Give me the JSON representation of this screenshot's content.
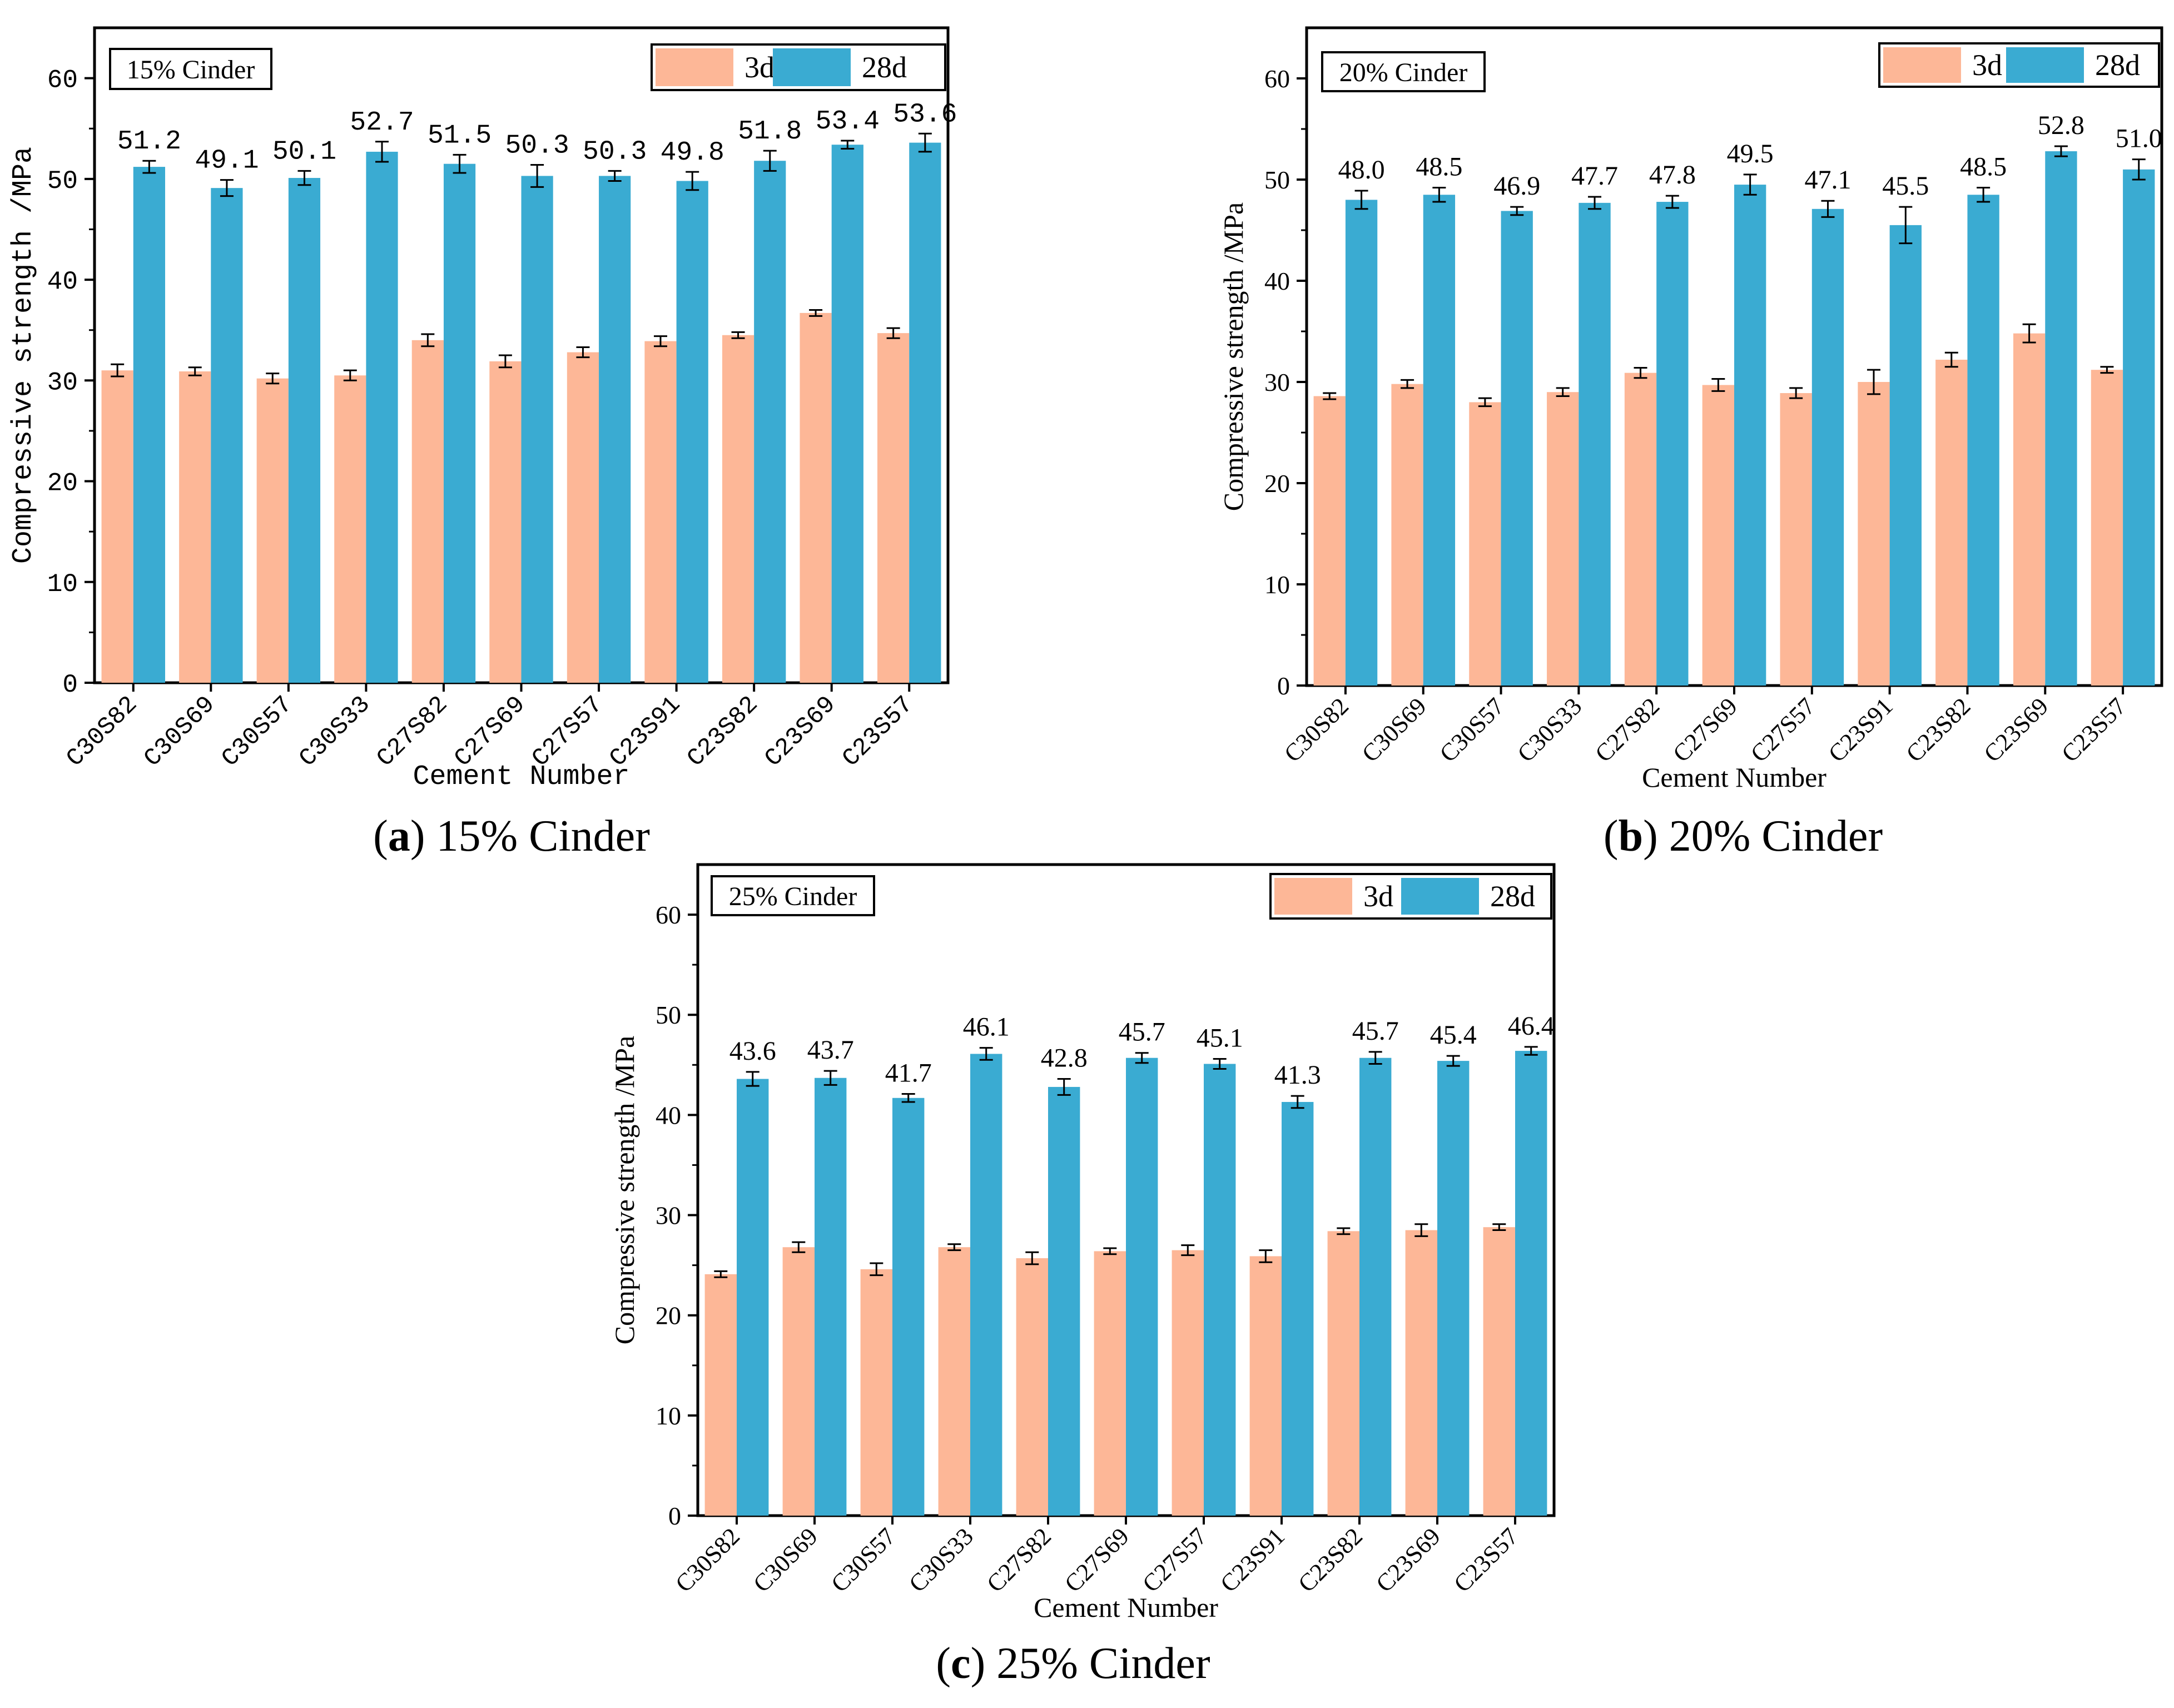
{
  "colors": {
    "bar_3d": "#fdb797",
    "bar_28d": "#3aabd2",
    "error_bar": "#000000",
    "axis": "#000000"
  },
  "chart_data": [
    {
      "id": "a",
      "type": "bar",
      "title": "15% Cinder",
      "xlabel": "Cement Number",
      "ylabel": "Compressive strength /MPa",
      "ylim": [
        0,
        65
      ],
      "yticks": [
        0,
        10,
        20,
        30,
        40,
        50,
        60
      ],
      "grid": false,
      "legend_position": "top-right",
      "categories": [
        "C30S82",
        "C30S69",
        "C30S57",
        "C30S33",
        "C27S82",
        "C27S69",
        "C27S57",
        "C23S91",
        "C23S82",
        "C23S69",
        "C23S57"
      ],
      "series": [
        {
          "name": "3d",
          "values": [
            31.0,
            30.9,
            30.2,
            30.5,
            34.0,
            31.9,
            32.8,
            33.9,
            34.5,
            36.7,
            34.7
          ],
          "errors": [
            0.6,
            0.4,
            0.5,
            0.5,
            0.6,
            0.6,
            0.5,
            0.5,
            0.3,
            0.3,
            0.5
          ]
        },
        {
          "name": "28d",
          "values": [
            51.2,
            49.1,
            50.1,
            52.7,
            51.5,
            50.3,
            50.3,
            49.8,
            51.8,
            53.4,
            53.6
          ],
          "errors": [
            0.6,
            0.8,
            0.7,
            1.0,
            0.9,
            1.1,
            0.5,
            0.9,
            1.0,
            0.4,
            0.9
          ]
        }
      ],
      "data_labels": [
        "51.2",
        "49.1",
        "50.1",
        "52.7",
        "51.5",
        "50.3",
        "50.3",
        "49.8",
        "51.8",
        "53.4",
        "53.6"
      ],
      "caption": {
        "letter": "a",
        "text": " 15% Cinder"
      }
    },
    {
      "id": "b",
      "type": "bar",
      "title": "20% Cinder",
      "xlabel": "Cement Number",
      "ylabel": "Compressive strength /MPa",
      "ylim": [
        0,
        65
      ],
      "yticks": [
        0,
        10,
        20,
        30,
        40,
        50,
        60
      ],
      "grid": false,
      "legend_position": "top-right",
      "categories": [
        "C30S82",
        "C30S69",
        "C30S57",
        "C30S33",
        "C27S82",
        "C27S69",
        "C27S57",
        "C23S91",
        "C23S82",
        "C23S69",
        "C23S57"
      ],
      "series": [
        {
          "name": "3d",
          "values": [
            28.6,
            29.8,
            28.0,
            29.0,
            30.9,
            29.7,
            28.9,
            30.0,
            32.2,
            34.8,
            31.2
          ],
          "errors": [
            0.3,
            0.4,
            0.4,
            0.4,
            0.5,
            0.6,
            0.5,
            1.2,
            0.7,
            0.9,
            0.3
          ]
        },
        {
          "name": "28d",
          "values": [
            48.0,
            48.5,
            46.9,
            47.7,
            47.8,
            49.5,
            47.1,
            45.5,
            48.5,
            52.8,
            51.0
          ],
          "errors": [
            0.9,
            0.7,
            0.4,
            0.6,
            0.6,
            1.0,
            0.8,
            1.8,
            0.7,
            0.5,
            1.0
          ]
        }
      ],
      "data_labels": [
        "48.0",
        "48.5",
        "46.9",
        "47.7",
        "47.8",
        "49.5",
        "47.1",
        "45.5",
        "48.5",
        "52.8",
        "51.0"
      ],
      "caption": {
        "letter": "b",
        "text": " 20% Cinder"
      }
    },
    {
      "id": "c",
      "type": "bar",
      "title": "25% Cinder",
      "xlabel": "Cement Number",
      "ylabel": "Compressive strength /MPa",
      "ylim": [
        0,
        65
      ],
      "yticks": [
        0,
        10,
        20,
        30,
        40,
        50,
        60
      ],
      "grid": false,
      "legend_position": "top-right",
      "categories": [
        "C30S82",
        "C30S69",
        "C30S57",
        "C30S33",
        "C27S82",
        "C27S69",
        "C27S57",
        "C23S91",
        "C23S82",
        "C23S69",
        "C23S57"
      ],
      "series": [
        {
          "name": "3d",
          "values": [
            24.1,
            26.8,
            24.6,
            26.8,
            25.7,
            26.4,
            26.5,
            25.9,
            28.4,
            28.5,
            28.8
          ],
          "errors": [
            0.3,
            0.5,
            0.6,
            0.3,
            0.6,
            0.3,
            0.5,
            0.6,
            0.3,
            0.6,
            0.3
          ]
        },
        {
          "name": "28d",
          "values": [
            43.6,
            43.7,
            41.7,
            46.1,
            42.8,
            45.7,
            45.1,
            41.3,
            45.7,
            45.4,
            46.4
          ],
          "errors": [
            0.7,
            0.7,
            0.4,
            0.6,
            0.8,
            0.5,
            0.5,
            0.6,
            0.6,
            0.5,
            0.4
          ]
        }
      ],
      "data_labels": [
        "43.6",
        "43.7",
        "41.7",
        "46.1",
        "42.8",
        "45.7",
        "45.1",
        "41.3",
        "45.7",
        "45.4",
        "46.4"
      ],
      "caption": {
        "letter": "c",
        "text": " 25% Cinder"
      }
    }
  ]
}
